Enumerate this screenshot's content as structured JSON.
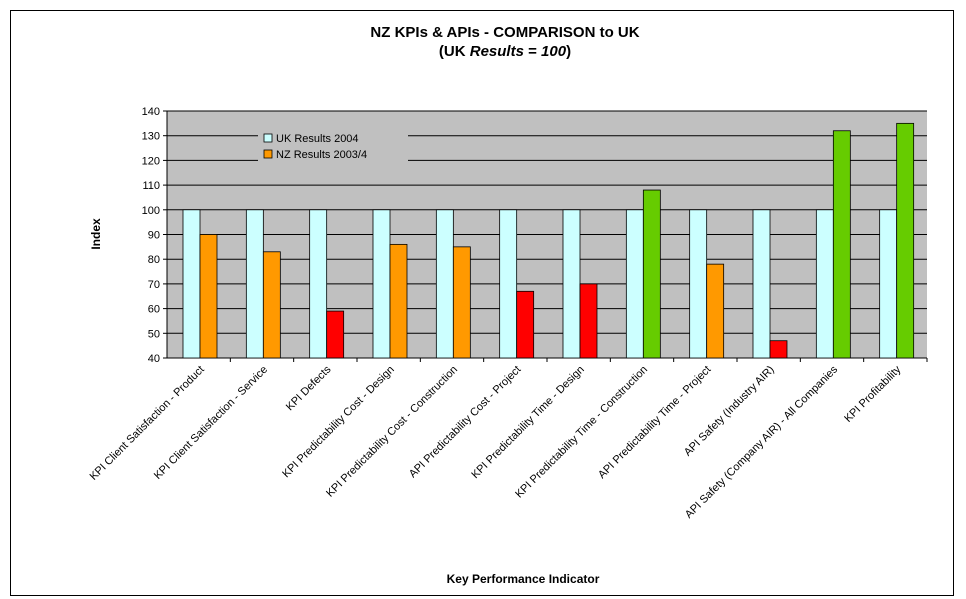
{
  "chart_data": {
    "type": "bar",
    "title_line1": "NZ KPIs & APIs - COMPARISON to UK",
    "title_line2_prefix": "(UK ",
    "title_line2_em1": "Results",
    "title_line2_mid": " = ",
    "title_line2_em2": "100",
    "title_line2_suffix": ")",
    "xlabel": "Key Performance Indicator",
    "ylabel": "Index",
    "ylim": [
      40,
      140
    ],
    "yticks": [
      40,
      50,
      60,
      70,
      80,
      90,
      100,
      110,
      120,
      130,
      140
    ],
    "grid": true,
    "legend_position": "top-left",
    "categories": [
      "KPI Client Satisfaction - Product",
      "KPI Client Satisfaction - Service",
      "KPI Defects",
      "KPI Predictability Cost - Design",
      "KPI Predictability Cost - Construction",
      "API Predictability Cost - Project",
      "KPI Predictability Time - Design",
      "KPI Predictability Time - Construction",
      "API Predictability Time - Project",
      "API  Safety (Industry AIR)",
      "API Safety (Company AIR) - All Companies",
      "KPI Profitability"
    ],
    "series": [
      {
        "name": "UK Results 2004",
        "color": "#ccffff",
        "values": [
          100,
          100,
          100,
          100,
          100,
          100,
          100,
          100,
          100,
          100,
          100,
          100
        ]
      },
      {
        "name": "NZ Results 2003/4",
        "color": "#ff9900",
        "values": [
          90,
          83,
          59,
          86,
          85,
          67,
          70,
          108,
          78,
          47,
          132,
          135
        ],
        "point_colors": [
          "#ff9900",
          "#ff9900",
          "#ff0000",
          "#ff9900",
          "#ff9900",
          "#ff0000",
          "#ff0000",
          "#66cc00",
          "#ff9900",
          "#ff0000",
          "#66cc00",
          "#66cc00"
        ]
      }
    ],
    "colors": {
      "plot_background": "#c0c0c0",
      "gridline": "#000000",
      "bar_outline": "#000000"
    }
  }
}
